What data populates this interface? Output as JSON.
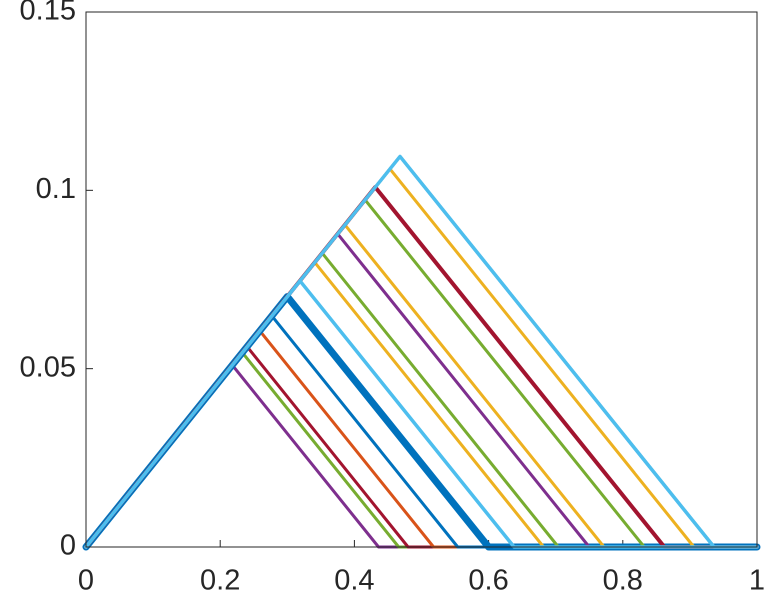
{
  "chart_data": {
    "type": "line",
    "xlim": [
      0,
      1
    ],
    "ylim": [
      0,
      0.15
    ],
    "xticks": [
      0,
      0.2,
      0.4,
      0.6,
      0.8,
      1
    ],
    "yticks": [
      0,
      0.05,
      0.1,
      0.15
    ],
    "series": [
      {
        "color": "#7E2F8E",
        "line_width": 3,
        "x": [
          0,
          0.218,
          0.436,
          1
        ],
        "values": [
          0,
          0.051,
          0,
          0
        ]
      },
      {
        "color": "#77AC30",
        "line_width": 3,
        "x": [
          0,
          0.233,
          0.466,
          1
        ],
        "values": [
          0,
          0.0545,
          0,
          0
        ]
      },
      {
        "color": "#A2142F",
        "line_width": 3,
        "x": [
          0,
          0.24,
          0.48,
          1
        ],
        "values": [
          0,
          0.0562,
          0,
          0
        ]
      },
      {
        "color": "#D95319",
        "line_width": 3,
        "x": [
          0,
          0.259,
          0.518,
          1
        ],
        "values": [
          0,
          0.0606,
          0,
          0
        ]
      },
      {
        "color": "#0072BD",
        "line_width": 3,
        "x": [
          0,
          0.277,
          0.554,
          1
        ],
        "values": [
          0,
          0.0648,
          0,
          0
        ]
      },
      {
        "color": "#0072BD",
        "line_width": 7,
        "x": [
          0,
          0.3,
          0.6,
          1
        ],
        "values": [
          0,
          0.0702,
          0,
          0
        ]
      },
      {
        "color": "#D95319",
        "line_width": 1.5,
        "x": [
          0,
          0.319,
          0.638,
          1
        ],
        "values": [
          0,
          0.0746,
          0,
          0
        ]
      },
      {
        "color": "#EDB120",
        "line_width": 3,
        "x": [
          0,
          0.341,
          0.682,
          1
        ],
        "values": [
          0,
          0.0798,
          0,
          0
        ]
      },
      {
        "color": "#77AC30",
        "line_width": 3,
        "x": [
          0,
          0.352,
          0.704,
          1
        ],
        "values": [
          0,
          0.0824,
          0,
          0
        ]
      },
      {
        "color": "#7E2F8E",
        "line_width": 3,
        "x": [
          0,
          0.375,
          0.75,
          1
        ],
        "values": [
          0,
          0.0878,
          0,
          0
        ]
      },
      {
        "color": "#EDB120",
        "line_width": 3,
        "x": [
          0,
          0.386,
          0.772,
          1
        ],
        "values": [
          0,
          0.0903,
          0,
          0
        ]
      },
      {
        "color": "#77AC30",
        "line_width": 3,
        "x": [
          0,
          0.416,
          0.832,
          1
        ],
        "values": [
          0,
          0.0973,
          0,
          0
        ]
      },
      {
        "color": "#A2142F",
        "line_width": 4,
        "x": [
          0,
          0.431,
          0.862,
          1
        ],
        "values": [
          0,
          0.1009,
          0,
          0
        ]
      },
      {
        "color": "#EDB120",
        "line_width": 3,
        "x": [
          0,
          0.453,
          0.906,
          1
        ],
        "values": [
          0,
          0.106,
          0,
          0
        ]
      },
      {
        "color": "#D95319",
        "line_width": 3,
        "x": [
          0,
          0.468,
          0.936,
          1
        ],
        "values": [
          0,
          0.1095,
          0,
          0
        ]
      },
      {
        "color": "#4DBEEE",
        "line_width": 3.5,
        "x": [
          0,
          0.319,
          0.638,
          1
        ],
        "values": [
          0,
          0.0746,
          0,
          0
        ]
      },
      {
        "color": "#4DBEEE",
        "line_width": 3.5,
        "x": [
          0,
          0.468,
          0.936,
          1
        ],
        "values": [
          0,
          0.1095,
          0,
          0
        ]
      }
    ]
  }
}
